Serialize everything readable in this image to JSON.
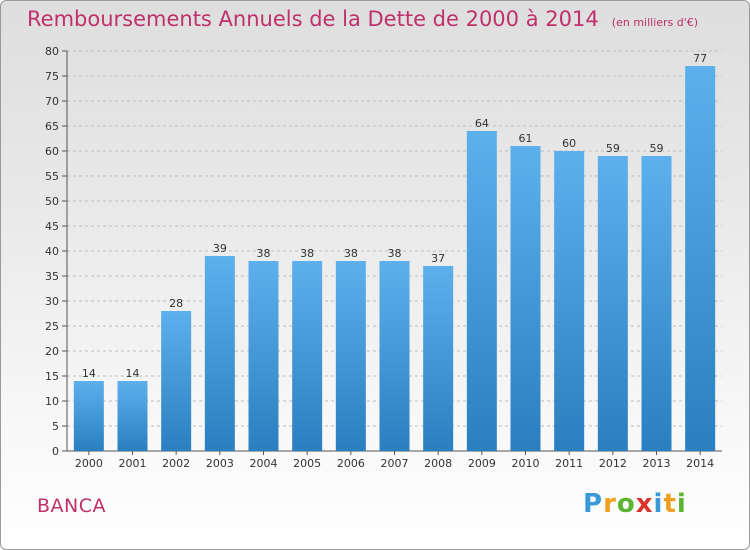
{
  "colors": {
    "title": "#c0306b",
    "bar_top": "#5cb0ec",
    "bar_bottom": "#2a7fc0",
    "axis": "#555555",
    "grid": "#bdbdbd"
  },
  "chart_data": {
    "type": "bar",
    "title": "Remboursements Annuels de la Dette de 2000 à 2014",
    "subtitle": "(en milliers d'€)",
    "categories": [
      "2000",
      "2001",
      "2002",
      "2003",
      "2004",
      "2005",
      "2006",
      "2007",
      "2008",
      "2009",
      "2010",
      "2011",
      "2012",
      "2013",
      "2014"
    ],
    "values": [
      14,
      14,
      28,
      39,
      38,
      38,
      38,
      38,
      37,
      64,
      61,
      60,
      59,
      59,
      77
    ],
    "ylim": [
      0,
      80
    ],
    "yticks": [
      0,
      5,
      10,
      15,
      20,
      25,
      30,
      35,
      40,
      45,
      50,
      55,
      60,
      65,
      70,
      75,
      80
    ],
    "xlabel": "",
    "ylabel": "",
    "grid": true
  },
  "footer": {
    "commune": "BANCA",
    "brand_letters": [
      "P",
      "r",
      "o",
      "x",
      "i",
      "t",
      "i"
    ],
    "brand_colors": [
      "#3a9ad9",
      "#f0a020",
      "#5cb531",
      "#d8342c",
      "#3a9ad9",
      "#f0a020",
      "#5cb531"
    ]
  }
}
